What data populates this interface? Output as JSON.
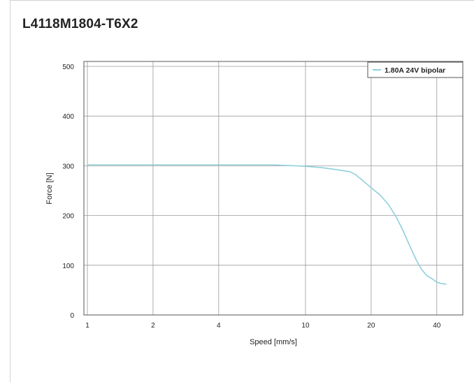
{
  "chart_data": {
    "type": "line",
    "title": "L4118M1804-T6X2",
    "xlabel": "Speed [mm/s]",
    "ylabel": "Force [N]",
    "x_scale": "log",
    "xlim": [
      1,
      50
    ],
    "ylim": [
      0,
      500
    ],
    "x_ticks": [
      1,
      2,
      4,
      10,
      20,
      40
    ],
    "y_ticks": [
      0,
      100,
      200,
      300,
      400,
      500
    ],
    "grid": true,
    "legend_position": "top-right",
    "series": [
      {
        "name": "1.80A 24V bipolar",
        "color": "#8fd0dc",
        "x": [
          1,
          2,
          4,
          7,
          10,
          12,
          14,
          16,
          17,
          20,
          22,
          24,
          26,
          28,
          30,
          32,
          34,
          36,
          38,
          40,
          42,
          44
        ],
        "y": [
          302,
          302,
          302,
          302,
          299,
          296,
          292,
          288,
          282,
          256,
          241,
          222,
          198,
          170,
          140,
          113,
          92,
          79,
          73,
          66,
          63,
          62
        ]
      }
    ]
  }
}
